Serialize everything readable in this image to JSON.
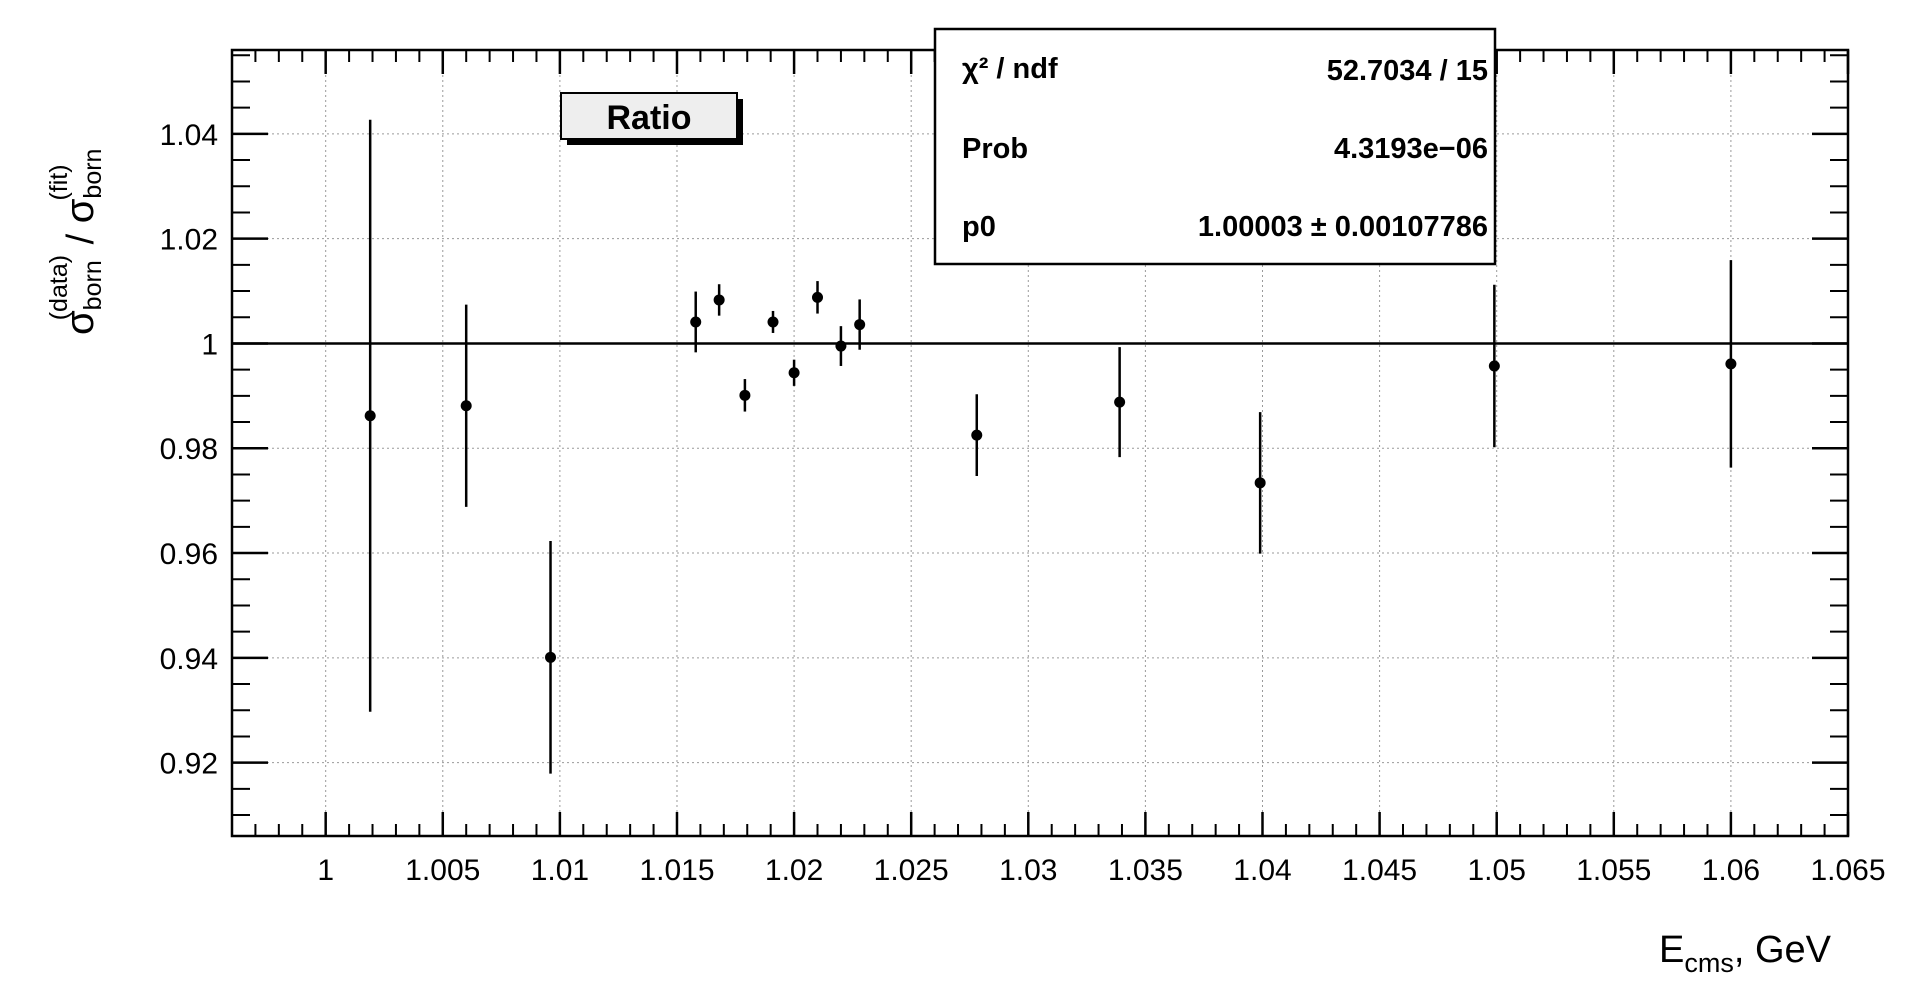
{
  "chart_data": {
    "type": "scatter",
    "title": "Ratio",
    "xlabel": {
      "main": "E",
      "sub": "cms",
      "rest": ", GeV"
    },
    "ylabel": {
      "num": "σ",
      "num_sub": "born",
      "num_sup": "(data)",
      "sep": " / ",
      "den": "σ",
      "den_sub": "born",
      "den_sup": "(fit)"
    },
    "xlim": [
      0.996,
      1.065
    ],
    "ylim": [
      0.906,
      1.056
    ],
    "x_ticks": [
      1,
      1.005,
      1.01,
      1.015,
      1.02,
      1.025,
      1.03,
      1.035,
      1.04,
      1.045,
      1.05,
      1.055,
      1.06,
      1.065
    ],
    "x_tick_labels": [
      "1",
      "1.005",
      "1.01",
      "1.015",
      "1.02",
      "1.025",
      "1.03",
      "1.035",
      "1.04",
      "1.045",
      "1.05",
      "1.055",
      "1.06",
      "1.065"
    ],
    "y_ticks": [
      0.92,
      0.94,
      0.96,
      0.98,
      1.0,
      1.02,
      1.04
    ],
    "y_tick_labels": [
      "0.92",
      "0.94",
      "0.96",
      "0.98",
      "1",
      "1.02",
      "1.04"
    ],
    "grid": true,
    "reference_line": 1.0,
    "points": [
      {
        "x": 1.0019,
        "y": 0.9862,
        "err": 0.0565
      },
      {
        "x": 1.006,
        "y": 0.9881,
        "err": 0.0193
      },
      {
        "x": 1.0096,
        "y": 0.9401,
        "err": 0.0222
      },
      {
        "x": 1.0158,
        "y": 1.0041,
        "err": 0.0058
      },
      {
        "x": 1.0168,
        "y": 1.0083,
        "err": 0.003
      },
      {
        "x": 1.0179,
        "y": 0.9901,
        "err": 0.0031
      },
      {
        "x": 1.0191,
        "y": 1.0041,
        "err": 0.0021
      },
      {
        "x": 1.02,
        "y": 0.9944,
        "err": 0.0025
      },
      {
        "x": 1.021,
        "y": 1.0088,
        "err": 0.0031
      },
      {
        "x": 1.022,
        "y": 0.9995,
        "err": 0.0038
      },
      {
        "x": 1.0228,
        "y": 1.0036,
        "err": 0.0048
      },
      {
        "x": 1.0278,
        "y": 0.9825,
        "err": 0.0078
      },
      {
        "x": 1.0339,
        "y": 0.9888,
        "err": 0.0105
      },
      {
        "x": 1.0399,
        "y": 0.9734,
        "err": 0.0135
      },
      {
        "x": 1.0499,
        "y": 0.9957,
        "err": 0.0155
      },
      {
        "x": 1.06,
        "y": 0.9961,
        "err": 0.0198
      }
    ],
    "stats": {
      "rows": [
        {
          "label": "χ² / ndf",
          "value": "52.7034 / 15"
        },
        {
          "label": "Prob",
          "value": "4.3193e−06"
        },
        {
          "label": "p0",
          "value": "1.00003 ± 0.00107786"
        }
      ]
    }
  }
}
